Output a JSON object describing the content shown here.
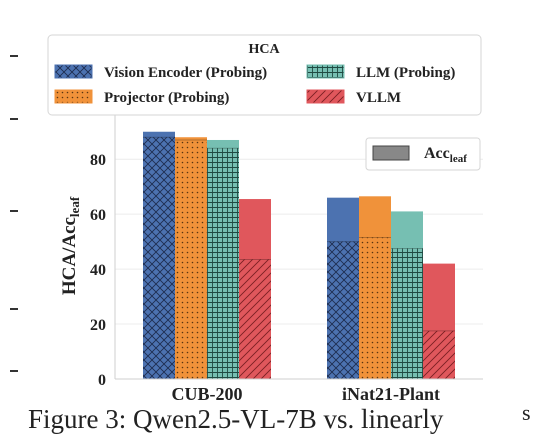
{
  "chart_data": {
    "type": "bar",
    "categories": [
      "CUB-200",
      "iNat21-Plant"
    ],
    "ylabel": "HCA/Acc",
    "ylabel_sub": "leaf",
    "ylim": [
      0,
      95
    ],
    "yticks": [
      0,
      20,
      40,
      60,
      80
    ],
    "grid": true,
    "legend_hca": {
      "title": "HCA",
      "entries": [
        "Vision Encoder (Probing)",
        "LLM (Probing)",
        "Projector (Probing)",
        "VLLM"
      ],
      "placement": "top-center"
    },
    "legend_acc": {
      "label": "Acc",
      "sub": "leaf",
      "placement": "top-right"
    },
    "series": [
      {
        "name": "Vision Encoder (Probing)",
        "acc_leaf": [
          90,
          66
        ],
        "hca": [
          88,
          50
        ],
        "color": "#4c72b0",
        "hatch": "cross"
      },
      {
        "name": "Projector (Probing)",
        "acc_leaf": [
          88,
          66.5
        ],
        "hca": [
          87,
          51.5
        ],
        "color": "#f0923a",
        "hatch": "dots"
      },
      {
        "name": "LLM (Probing)",
        "acc_leaf": [
          87,
          61
        ],
        "hca": [
          84,
          47.5
        ],
        "color": "#76bfb2",
        "hatch": "grid"
      },
      {
        "name": "VLLM",
        "acc_leaf": [
          65.5,
          42
        ],
        "hca": [
          43.5,
          17.5
        ],
        "color": "#e0575c",
        "hatch": "diag"
      }
    ]
  },
  "caption": {
    "text": "Figure 3: Qwen2.5-VL-7B vs. linearly",
    "right_edge": "s"
  }
}
